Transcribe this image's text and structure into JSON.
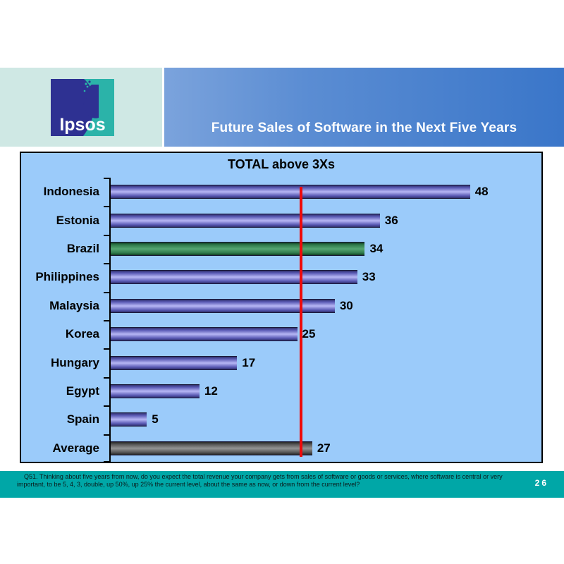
{
  "header": {
    "logo_text": "Ipsos",
    "title": "Future Sales of Software in the Next Five Years"
  },
  "colors": {
    "logo_panel_bg": "#cfe8e4",
    "logo_indigo": "#2e3192",
    "logo_teal": "#2bb3a9",
    "banner_gradient_left": "#7ba3dc",
    "banner_gradient_right": "#3a76c9",
    "chart_bg": "#9bcbfa",
    "footer_bg": "#00a7a7",
    "reference_line": "#ee0a0a"
  },
  "chart_data": {
    "type": "bar",
    "orientation": "horizontal",
    "title": "TOTAL above 3Xs",
    "categories": [
      "Indonesia",
      "Estonia",
      "Brazil",
      "Philippines",
      "Malaysia",
      "Korea",
      "Hungary",
      "Egypt",
      "Spain",
      "Average"
    ],
    "values": [
      48,
      36,
      34,
      33,
      30,
      25,
      17,
      12,
      5,
      27
    ],
    "bars": [
      {
        "label": "Indonesia",
        "value": 48,
        "color": "purple"
      },
      {
        "label": "Estonia",
        "value": 36,
        "color": "purple"
      },
      {
        "label": "Brazil",
        "value": 34,
        "color": "green"
      },
      {
        "label": "Philippines",
        "value": 33,
        "color": "purple"
      },
      {
        "label": "Malaysia",
        "value": 30,
        "color": "purple"
      },
      {
        "label": "Korea",
        "value": 25,
        "color": "purple"
      },
      {
        "label": "Hungary",
        "value": 17,
        "color": "purple"
      },
      {
        "label": "Egypt",
        "value": 12,
        "color": "purple"
      },
      {
        "label": "Spain",
        "value": 5,
        "color": "purple"
      },
      {
        "label": "Average",
        "value": 27,
        "color": "gray"
      }
    ],
    "palette": {
      "purple": [
        "#30306e",
        "#5a5ab4",
        "#b7b7f5"
      ],
      "green": [
        "#103f22",
        "#2f7a4a",
        "#55a671"
      ],
      "gray": [
        "#262626",
        "#555555",
        "#949494"
      ]
    },
    "xlim": [
      0,
      57.5
    ],
    "grid": false,
    "legend": false,
    "value_labels": true,
    "reference_line": {
      "value": 25.5,
      "color": "#ee0a0a"
    }
  },
  "footer": {
    "question": "Q51. Thinking about five years from now, do you expect the total revenue your company gets from sales of software or goods or services, where software is central or very important, to be 5, 4, 3, double, up 50%, up 25% the current level, about the same as now, or down from the current level?",
    "page_number": "26"
  }
}
